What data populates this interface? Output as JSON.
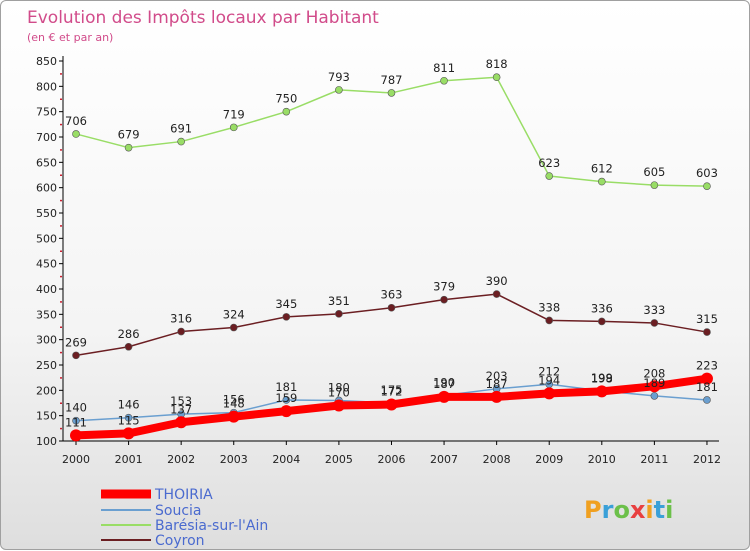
{
  "chart_data": {
    "type": "line",
    "title": "Evolution des Impôts locaux par Habitant",
    "subtitle": "(en € et par an)",
    "x": [
      "2000",
      "2001",
      "2002",
      "2003",
      "2004",
      "2005",
      "2006",
      "2007",
      "2008",
      "2009",
      "2010",
      "2011",
      "2012"
    ],
    "ylim": [
      100,
      850
    ],
    "yticks": [
      100,
      150,
      200,
      250,
      300,
      350,
      400,
      450,
      500,
      550,
      600,
      650,
      700,
      750,
      800,
      850
    ],
    "grid": false,
    "legend_position": "bottom-left",
    "series": [
      {
        "name": "THOIRIA",
        "color": "#ff0000",
        "values": [
          111,
          115,
          137,
          148,
          159,
          170,
          172,
          187,
          187,
          194,
          198,
          208,
          223
        ]
      },
      {
        "name": "Soucia",
        "color": "#6a9fd0",
        "values": [
          140,
          146,
          153,
          156,
          181,
          180,
          175,
          190,
          203,
          212,
          199,
          189,
          181
        ]
      },
      {
        "name": "Barésia-sur-l'Ain",
        "color": "#99dd66",
        "values": [
          706,
          679,
          691,
          719,
          750,
          793,
          787,
          811,
          818,
          623,
          612,
          605,
          603
        ]
      },
      {
        "name": "Coyron",
        "color": "#6b1e22",
        "values": [
          269,
          286,
          316,
          324,
          345,
          351,
          363,
          379,
          390,
          338,
          336,
          333,
          315
        ]
      }
    ]
  },
  "logo": {
    "text": "Proxiti"
  },
  "colors": {
    "title": "#d14b8a",
    "axis": "#000000"
  }
}
